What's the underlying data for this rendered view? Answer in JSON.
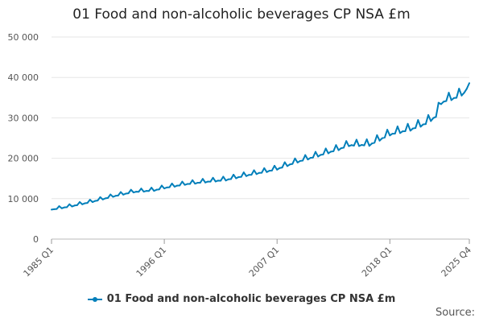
{
  "chart_data": {
    "type": "line",
    "title": "01 Food and non-alcoholic beverages CP NSA £m",
    "xlabel": "",
    "ylabel": "",
    "ylim": [
      0,
      50000
    ],
    "yticks": [
      {
        "value": 0,
        "label": "0"
      },
      {
        "value": 10000,
        "label": "10 000"
      },
      {
        "value": 20000,
        "label": "20 000"
      },
      {
        "value": 30000,
        "label": "30 000"
      },
      {
        "value": 40000,
        "label": "40 000"
      },
      {
        "value": 50000,
        "label": "50 000"
      }
    ],
    "xticks": [
      {
        "index": 0,
        "label": "1985 Q1"
      },
      {
        "index": 44,
        "label": "1996 Q1"
      },
      {
        "index": 88,
        "label": "2007 Q1"
      },
      {
        "index": 132,
        "label": "2018 Q1"
      },
      {
        "index": 163,
        "label": "2025 Q4"
      }
    ],
    "grid": true,
    "legend_position": "bottom",
    "series": [
      {
        "name": "01 Food and non-alcoholic beverages CP NSA £m",
        "color": "#007fba",
        "x_start": "1985 Q1",
        "x_end": "2025 Q4",
        "anchors": [
          {
            "index": 0,
            "value": 7300
          },
          {
            "index": 8,
            "value": 8200
          },
          {
            "index": 16,
            "value": 9300
          },
          {
            "index": 24,
            "value": 10600
          },
          {
            "index": 32,
            "value": 11700
          },
          {
            "index": 40,
            "value": 12100
          },
          {
            "index": 44,
            "value": 12700
          },
          {
            "index": 52,
            "value": 13600
          },
          {
            "index": 60,
            "value": 14200
          },
          {
            "index": 68,
            "value": 14700
          },
          {
            "index": 76,
            "value": 15800
          },
          {
            "index": 84,
            "value": 16800
          },
          {
            "index": 88,
            "value": 17400
          },
          {
            "index": 96,
            "value": 19200
          },
          {
            "index": 104,
            "value": 20700
          },
          {
            "index": 112,
            "value": 22300
          },
          {
            "index": 116,
            "value": 23300
          },
          {
            "index": 124,
            "value": 23400
          },
          {
            "index": 132,
            "value": 26000
          },
          {
            "index": 140,
            "value": 27200
          },
          {
            "index": 146,
            "value": 28700
          },
          {
            "index": 150,
            "value": 30500
          },
          {
            "index": 152,
            "value": 33800
          },
          {
            "index": 154,
            "value": 34400
          },
          {
            "index": 158,
            "value": 35200
          },
          {
            "index": 161,
            "value": 36300
          },
          {
            "index": 163,
            "value": 38600
          }
        ],
        "seasonal_q4_amplitude": [
          {
            "index": 0,
            "value": 500
          },
          {
            "index": 88,
            "value": 900
          },
          {
            "index": 132,
            "value": 1400
          },
          {
            "index": 163,
            "value": 1700
          }
        ]
      }
    ]
  },
  "source_label": "Source:"
}
